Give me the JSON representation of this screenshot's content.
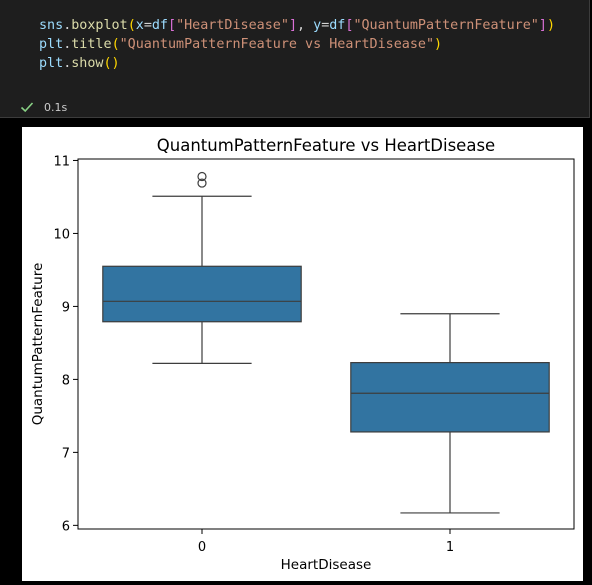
{
  "code": {
    "lines": [
      [
        {
          "t": "sns",
          "c": "tk-id"
        },
        {
          "t": ".",
          "c": "tk-pun"
        },
        {
          "t": "boxplot",
          "c": "tk-fn"
        },
        {
          "t": "(",
          "c": "tk-br2"
        },
        {
          "t": "x",
          "c": "tk-id"
        },
        {
          "t": "=",
          "c": "tk-pun"
        },
        {
          "t": "df",
          "c": "tk-id"
        },
        {
          "t": "[",
          "c": "tk-br"
        },
        {
          "t": "\"HeartDisease\"",
          "c": "tk-str"
        },
        {
          "t": "]",
          "c": "tk-br"
        },
        {
          "t": ", ",
          "c": "tk-pun"
        },
        {
          "t": "y",
          "c": "tk-id"
        },
        {
          "t": "=",
          "c": "tk-pun"
        },
        {
          "t": "df",
          "c": "tk-id"
        },
        {
          "t": "[",
          "c": "tk-br"
        },
        {
          "t": "\"QuantumPatternFeature\"",
          "c": "tk-str"
        },
        {
          "t": "]",
          "c": "tk-br"
        },
        {
          "t": ")",
          "c": "tk-br2"
        }
      ],
      [
        {
          "t": "plt",
          "c": "tk-id"
        },
        {
          "t": ".",
          "c": "tk-pun"
        },
        {
          "t": "title",
          "c": "tk-fn"
        },
        {
          "t": "(",
          "c": "tk-br2"
        },
        {
          "t": "\"QuantumPatternFeature vs HeartDisease\"",
          "c": "tk-str"
        },
        {
          "t": ")",
          "c": "tk-br2"
        }
      ],
      [
        {
          "t": "plt",
          "c": "tk-id"
        },
        {
          "t": ".",
          "c": "tk-pun"
        },
        {
          "t": "show",
          "c": "tk-fn"
        },
        {
          "t": "()",
          "c": "tk-br2"
        }
      ]
    ]
  },
  "execution": {
    "status_icon": "check-icon",
    "status_color": "#89d185",
    "duration": "0.1s"
  },
  "chart_data": {
    "type": "box",
    "title": "QuantumPatternFeature vs HeartDisease",
    "xlabel": "HeartDisease",
    "ylabel": "QuantumPatternFeature",
    "categories": [
      "0",
      "1"
    ],
    "ylim": [
      5.95,
      11.02
    ],
    "yticks": [
      6,
      7,
      8,
      9,
      10,
      11
    ],
    "box_color": "#3274a1",
    "boxes": [
      {
        "category": "0",
        "whisker_low": 8.22,
        "q1": 8.79,
        "median": 9.07,
        "q3": 9.55,
        "whisker_high": 10.51,
        "outliers": [
          10.69,
          10.78
        ]
      },
      {
        "category": "1",
        "whisker_low": 6.17,
        "q1": 7.28,
        "median": 7.81,
        "q3": 8.23,
        "whisker_high": 8.9,
        "outliers": []
      }
    ]
  }
}
